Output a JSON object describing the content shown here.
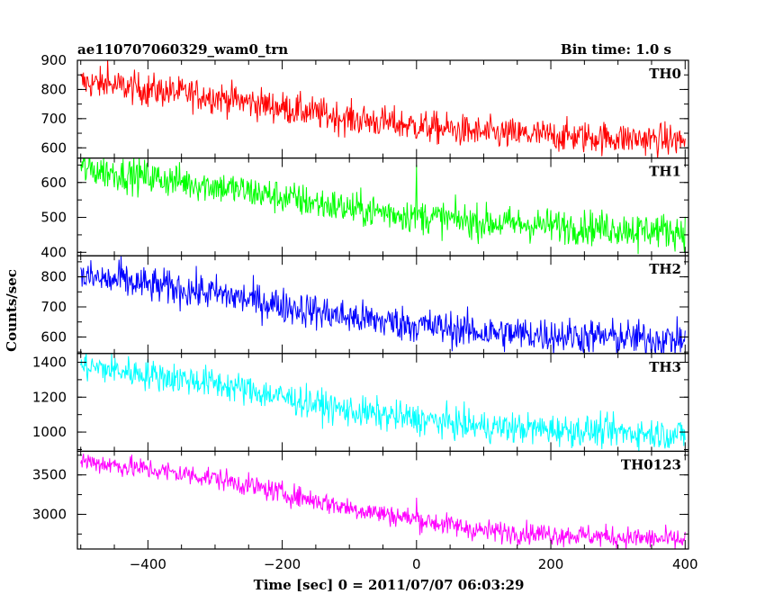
{
  "header": {
    "left": "ae110707060329_wam0_trn",
    "right": "Bin time: 1.0 s"
  },
  "chart_data": {
    "type": "line",
    "xlabel": "Time [sec] 0 = 2011/07/07 06:03:29",
    "ylabel": "Counts/sec",
    "xlim": [
      -505,
      405
    ],
    "xticks": [
      -400,
      -200,
      0,
      200,
      400
    ],
    "xtick_labels": [
      "−400",
      "−200",
      "0",
      "200",
      "400"
    ],
    "bin_time_s": 1.0,
    "panels": [
      {
        "name": "TH0",
        "color": "#ff0000",
        "ylim": [
          565,
          900
        ],
        "yticks": [
          600,
          700,
          800,
          900
        ],
        "trend": [
          [
            -500,
            825
          ],
          [
            -300,
            775
          ],
          [
            -100,
            700
          ],
          [
            100,
            650
          ],
          [
            400,
            625
          ]
        ],
        "noise": 28,
        "spikes": [
          [
            -460,
            905
          ],
          [
            -400,
            740
          ]
        ]
      },
      {
        "name": "TH1",
        "color": "#00ff00",
        "ylim": [
          390,
          670
        ],
        "yticks": [
          400,
          500,
          600
        ],
        "trend": [
          [
            -500,
            640
          ],
          [
            -300,
            590
          ],
          [
            -100,
            525
          ],
          [
            100,
            485
          ],
          [
            400,
            460
          ]
        ],
        "noise": 25,
        "spikes": [
          [
            0,
            650
          ],
          [
            330,
            395
          ]
        ]
      },
      {
        "name": "TH2",
        "color": "#0000ff",
        "ylim": [
          545,
          870
        ],
        "yticks": [
          600,
          700,
          800
        ],
        "trend": [
          [
            -500,
            800
          ],
          [
            -300,
            745
          ],
          [
            -100,
            665
          ],
          [
            100,
            615
          ],
          [
            400,
            590
          ]
        ],
        "noise": 30,
        "spikes": [
          [
            -440,
            870
          ]
        ]
      },
      {
        "name": "TH3",
        "color": "#00ffff",
        "ylim": [
          890,
          1450
        ],
        "yticks": [
          1000,
          1200,
          1400
        ],
        "trend": [
          [
            -500,
            1380
          ],
          [
            -300,
            1280
          ],
          [
            -100,
            1120
          ],
          [
            100,
            1030
          ],
          [
            400,
            985
          ]
        ],
        "noise": 45,
        "spikes": []
      },
      {
        "name": "TH0123",
        "color": "#ff00ff",
        "ylim": [
          2560,
          3800
        ],
        "yticks": [
          3000,
          3500
        ],
        "trend": [
          [
            -500,
            3680
          ],
          [
            -300,
            3460
          ],
          [
            -100,
            3080
          ],
          [
            100,
            2790
          ],
          [
            400,
            2670
          ]
        ],
        "noise": 70,
        "spikes": [
          [
            0,
            3210
          ]
        ]
      }
    ]
  }
}
